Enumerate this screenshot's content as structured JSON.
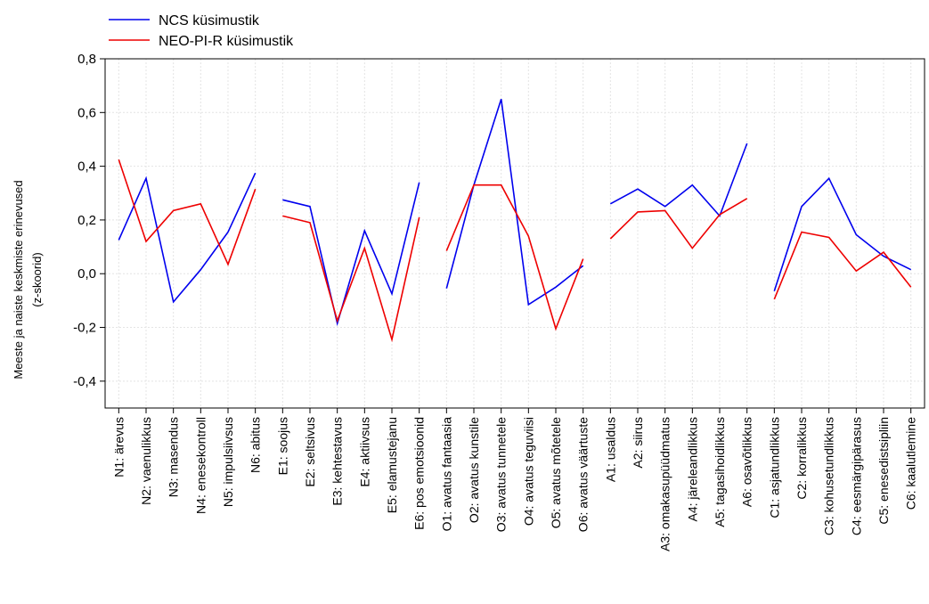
{
  "chart_data": {
    "type": "line",
    "ylabel_line1": "Meeste ja naiste keskmiste erinevused",
    "ylabel_line2": "(z-skoorid)",
    "ylim": [
      -0.5,
      0.8
    ],
    "yticks": [
      {
        "value": 0.8,
        "label": "0,8"
      },
      {
        "value": 0.6,
        "label": "0,6"
      },
      {
        "value": 0.4,
        "label": "0,4"
      },
      {
        "value": 0.2,
        "label": "0,2"
      },
      {
        "value": 0.0,
        "label": "0,0"
      },
      {
        "value": -0.2,
        "label": "-0,2"
      },
      {
        "value": -0.4,
        "label": "-0,4"
      }
    ],
    "grid": true,
    "legend_position": "top-left",
    "categories": [
      "N1: ärevus",
      "N2: vaenulikkus",
      "N3: masendus",
      "N4: enesekontroll",
      "N5: impulsiivsus",
      "N6: abitus",
      "E1: soojus",
      "E2: seltsivus",
      "E3: kehtestavus",
      "E4: aktiivsus",
      "E5: elamustejanu",
      "E6: pos emotsioonid",
      "O1: avatus fantaasia",
      "O2: avatus kunstile",
      "O3: avatus tunnetele",
      "O4: avatus teguviisi",
      "O5: avatus mõtetele",
      "O6: avatus väärtuste",
      "A1: usaldus",
      "A2: siirus",
      "A3: omakasupüüdmatus",
      "A4: järeleandlikkus",
      "A5: tagasihoidlikkus",
      "A6: osavõtlikkus",
      "C1: asjatundlikkus",
      "C2: korralikkus",
      "C3: kohusetundlikkus",
      "C4: eesmärgipärasus",
      "C5: enesedistsipliin",
      "C6: kaalutlemine"
    ],
    "groups": [
      [
        0,
        5
      ],
      [
        6,
        11
      ],
      [
        12,
        17
      ],
      [
        18,
        23
      ],
      [
        24,
        29
      ]
    ],
    "series": [
      {
        "name": "NCS küsimustik",
        "color": "#0000ee",
        "values": [
          0.125,
          0.355,
          -0.105,
          0.015,
          0.155,
          0.375,
          0.275,
          0.25,
          -0.185,
          0.16,
          -0.075,
          0.34,
          -0.055,
          0.33,
          0.65,
          -0.115,
          -0.05,
          0.03,
          0.26,
          0.315,
          0.25,
          0.33,
          0.215,
          0.485,
          -0.065,
          0.25,
          0.355,
          0.145,
          0.065,
          0.015
        ]
      },
      {
        "name": "NEO-PI-R küsimustik",
        "color": "#ee0000",
        "values": [
          0.425,
          0.12,
          0.235,
          0.26,
          0.035,
          0.315,
          0.215,
          0.19,
          -0.175,
          0.095,
          -0.245,
          0.21,
          0.085,
          0.33,
          0.33,
          0.14,
          -0.205,
          0.055,
          0.13,
          0.23,
          0.235,
          0.095,
          0.22,
          0.28,
          -0.095,
          0.155,
          0.135,
          0.01,
          0.08,
          -0.05
        ]
      }
    ]
  }
}
